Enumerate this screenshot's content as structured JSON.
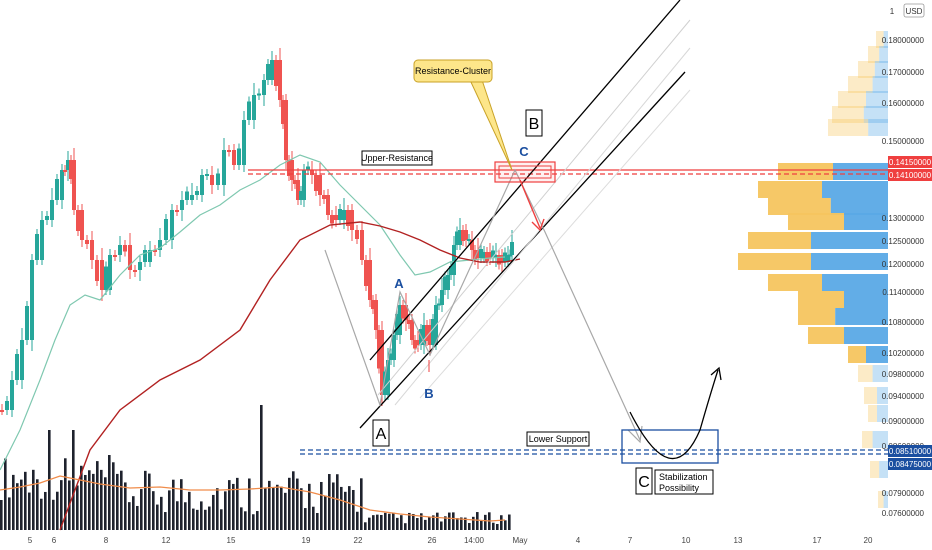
{
  "colors": {
    "up": "#26a69a",
    "down": "#ef5350",
    "volume": "#1e222d",
    "ma_fast": "#7fc8b0",
    "ma_slow": "#b22222",
    "vol_ma": "#f08c4a",
    "vp_up": "#5aa9e6",
    "vp_down": "#f5c55f",
    "resistance": "#ef3f3f",
    "support": "#1b4fa0"
  },
  "currency": "USD",
  "price_axis": [
    "0.18000000",
    "0.17000000",
    "0.16000000",
    "0.15000000",
    "0.13000000",
    "0.12500000",
    "0.12000000",
    "0.11400000",
    "0.10800000",
    "0.10200000",
    "0.09800000",
    "0.09400000",
    "0.09000000",
    "0.08600000",
    "0.07900000",
    "0.07600000"
  ],
  "price_tags": {
    "r1": "0.14150000",
    "r2": "0.14100000",
    "s1": "0.08510000",
    "s2": "0.08475000"
  },
  "x_axis": [
    "5",
    "6",
    "8",
    "12",
    "15",
    "19",
    "22",
    "26",
    "14:00",
    "May",
    "4",
    "7",
    "10",
    "13",
    "17",
    "20"
  ],
  "labels": {
    "resistance_cluster": "Resistance-Cluster",
    "upper_resistance": "Upper-Resistance",
    "lower_support": "Lower Support",
    "stabilization_1": "Stabilization",
    "stabilization_2": "Possibility",
    "wave_A_big": "A",
    "wave_B_big": "B",
    "wave_C_big": "C",
    "wave_A_small": "A",
    "wave_B_small": "B",
    "wave_C_small": "C"
  },
  "chart_data": {
    "type": "candlestick",
    "x": [
      "5",
      "6",
      "8",
      "12",
      "15",
      "19",
      "22",
      "26",
      "14:00",
      "May"
    ],
    "close_approx": [
      0.082,
      0.145,
      0.118,
      0.14,
      0.17,
      0.135,
      0.093,
      0.12,
      0.122,
      0.121
    ],
    "ylim": [
      0.074,
      0.186
    ]
  }
}
